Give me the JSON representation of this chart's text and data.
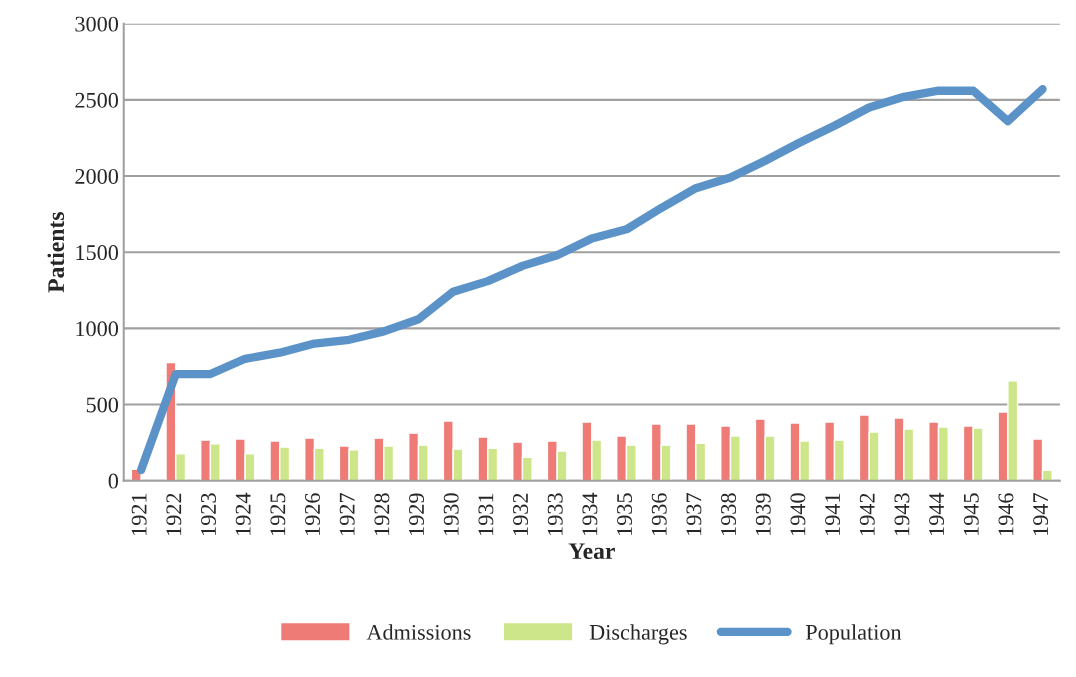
{
  "chart_data": {
    "type": "bar",
    "xlabel": "Year",
    "ylabel": "Patients",
    "categories": [
      "1921",
      "1922",
      "1923",
      "1924",
      "1925",
      "1926",
      "1927",
      "1928",
      "1929",
      "1930",
      "1931",
      "1932",
      "1933",
      "1934",
      "1935",
      "1936",
      "1937",
      "1938",
      "1939",
      "1940",
      "1941",
      "1942",
      "1943",
      "1944",
      "1945",
      "1946",
      "1947"
    ],
    "series": [
      {
        "name": "Admissions",
        "color": "#ee7b76",
        "values": [
          75,
          775,
          266,
          273,
          260,
          279,
          227,
          279,
          312,
          392,
          286,
          253,
          260,
          385,
          293,
          372,
          372,
          359,
          405,
          378,
          385,
          431,
          411,
          385,
          359,
          451,
          273
        ]
      },
      {
        "name": "Discharges",
        "color": "#cde68a",
        "values": [
          null,
          176,
          242,
          176,
          220,
          213,
          202,
          227,
          233,
          207,
          213,
          154,
          194,
          266,
          233,
          233,
          246,
          293,
          293,
          260,
          266,
          319,
          339,
          352,
          345,
          656,
          68
        ]
      },
      {
        "name": "Population",
        "type": "line",
        "color": "#5b93c8",
        "values": [
          70,
          700,
          700,
          800,
          840,
          900,
          925,
          980,
          1060,
          1240,
          1310,
          1410,
          1480,
          1590,
          1650,
          1790,
          1920,
          1990,
          2100,
          2220,
          2330,
          2450,
          2520,
          2560,
          2560,
          2360,
          2570
        ]
      }
    ],
    "ylim": [
      0,
      3000
    ],
    "yticks": [
      0,
      500,
      1000,
      1500,
      2000,
      2500,
      3000
    ],
    "grid": "y",
    "legend": "bottom"
  }
}
